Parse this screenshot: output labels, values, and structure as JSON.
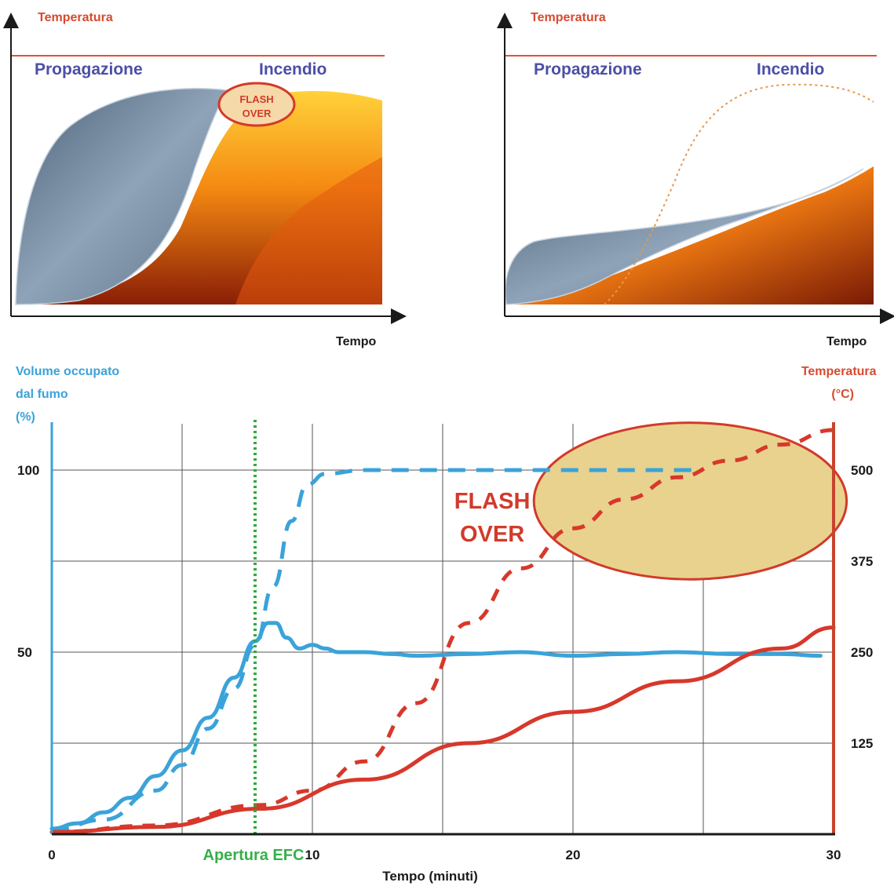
{
  "colors": {
    "smoke": "#3aa3d9",
    "temperature": "#d7382b",
    "efc": "#2eaa3c",
    "flashover_fill": "#e8d28e",
    "flashover_stroke": "#d23a2a",
    "label_red": "#d84a2e",
    "label_blue": "#4b4fa6"
  },
  "panels": {
    "left": {
      "ylabel": "Temperatura",
      "xlabel": "Tempo",
      "phase_left": "Propagazione",
      "phase_right": "Incendio",
      "flashover_line1": "FLASH",
      "flashover_line2": "OVER"
    },
    "right": {
      "ylabel": "Temperatura",
      "xlabel": "Tempo",
      "phase_left": "Propagazione",
      "phase_right": "Incendio"
    }
  },
  "chart_data": {
    "type": "line",
    "xlabel": "Tempo (minuti)",
    "ylabel_left": [
      "Volume occupato",
      "dal fumo",
      "(%)"
    ],
    "ylabel_right": [
      "Temperatura",
      "(°C)"
    ],
    "x_ticks": [
      "0",
      "10",
      "20",
      "30"
    ],
    "y_left_ticks": [
      "50",
      "100"
    ],
    "y_right_ticks": [
      "125",
      "250",
      "375",
      "500"
    ],
    "xlim": [
      0,
      30
    ],
    "ylim_left": [
      0,
      125
    ],
    "ylim_right": [
      0,
      625
    ],
    "grid": true,
    "efc_label": "Apertura EFC",
    "efc_x": 7.8,
    "flashover_label": [
      "FLASH",
      "OVER"
    ],
    "flashover_region": {
      "x": [
        18.5,
        30.5
      ],
      "temperature": [
        350,
        565
      ]
    },
    "series": [
      {
        "axis": "left",
        "style": "dashed",
        "x": [
          0,
          2,
          4,
          5,
          6,
          7,
          7.8,
          8.5,
          9.2,
          9.8,
          10.5,
          12,
          15,
          20,
          25
        ],
        "values": [
          1,
          4,
          12,
          19,
          29,
          40,
          52,
          68,
          86,
          96,
          99,
          100,
          100,
          100,
          100
        ]
      },
      {
        "axis": "left",
        "style": "solid",
        "x": [
          0,
          1,
          2,
          3,
          4,
          5,
          6,
          7,
          7.8,
          8.3,
          8.6,
          9.0,
          9.5,
          10.0,
          10.5,
          11,
          12,
          13,
          14,
          16,
          18,
          20,
          22,
          24,
          26,
          28,
          29.5
        ],
        "values": [
          1.5,
          3,
          6,
          10,
          16,
          23,
          32,
          43,
          53,
          58,
          58,
          54,
          51,
          52,
          51,
          50,
          50,
          49.5,
          49,
          49.5,
          50,
          49,
          49.5,
          50,
          49.5,
          49.5,
          49
        ]
      },
      {
        "axis": "right",
        "style": "solid",
        "x": [
          0,
          4,
          8,
          12,
          16,
          20,
          24,
          28,
          30
        ],
        "values": [
          3,
          10,
          35,
          75,
          125,
          168,
          210,
          255,
          284
        ]
      },
      {
        "axis": "right",
        "style": "dashed",
        "x": [
          0,
          4,
          8,
          10,
          12,
          14,
          16,
          18,
          20,
          22,
          24,
          26,
          28,
          30
        ],
        "values": [
          3,
          12,
          40,
          60,
          100,
          180,
          290,
          365,
          420,
          460,
          490,
          513,
          535,
          555
        ]
      }
    ]
  }
}
